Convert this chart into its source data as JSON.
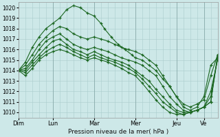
{
  "title": "",
  "xlabel": "Pression niveau de la mer( hPa )",
  "bg_color": "#cde8e8",
  "grid_color": "#aacccc",
  "line_color": "#1a6620",
  "ylim": [
    1009.5,
    1020.5
  ],
  "yticks": [
    1010,
    1011,
    1012,
    1013,
    1014,
    1015,
    1016,
    1017,
    1018,
    1019,
    1020
  ],
  "day_labels": [
    "Dim",
    "Lun",
    "Mar",
    "Mer",
    "Jeu",
    "Ve"
  ],
  "day_positions": [
    0,
    20,
    44,
    68,
    92,
    108
  ],
  "xlim": [
    0,
    116
  ],
  "series": [
    {
      "pts": [
        [
          0,
          1014.0
        ],
        [
          4,
          1014.8
        ],
        [
          8,
          1016.2
        ],
        [
          12,
          1017.2
        ],
        [
          16,
          1018.0
        ],
        [
          20,
          1018.5
        ],
        [
          24,
          1019.0
        ],
        [
          28,
          1019.8
        ],
        [
          32,
          1020.2
        ],
        [
          36,
          1020.0
        ],
        [
          40,
          1019.5
        ],
        [
          44,
          1019.2
        ],
        [
          48,
          1018.5
        ],
        [
          50,
          1018.0
        ],
        [
          54,
          1017.2
        ],
        [
          58,
          1016.5
        ],
        [
          62,
          1016.0
        ],
        [
          66,
          1015.5
        ],
        [
          68,
          1015.2
        ],
        [
          72,
          1015.0
        ],
        [
          76,
          1014.5
        ],
        [
          80,
          1014.0
        ],
        [
          84,
          1013.2
        ],
        [
          88,
          1012.5
        ],
        [
          92,
          1011.5
        ],
        [
          96,
          1010.5
        ],
        [
          100,
          1010.2
        ],
        [
          104,
          1010.5
        ],
        [
          108,
          1011.5
        ],
        [
          112,
          1014.5
        ],
        [
          116,
          1015.2
        ]
      ]
    },
    {
      "pts": [
        [
          0,
          1014.0
        ],
        [
          4,
          1014.5
        ],
        [
          8,
          1015.5
        ],
        [
          12,
          1016.5
        ],
        [
          16,
          1017.2
        ],
        [
          20,
          1017.8
        ],
        [
          24,
          1018.2
        ],
        [
          28,
          1018.0
        ],
        [
          32,
          1017.5
        ],
        [
          36,
          1017.2
        ],
        [
          40,
          1017.0
        ],
        [
          44,
          1017.2
        ],
        [
          48,
          1017.0
        ],
        [
          52,
          1016.8
        ],
        [
          56,
          1016.5
        ],
        [
          60,
          1016.2
        ],
        [
          64,
          1016.0
        ],
        [
          68,
          1015.8
        ],
        [
          72,
          1015.5
        ],
        [
          76,
          1015.0
        ],
        [
          80,
          1014.5
        ],
        [
          84,
          1013.5
        ],
        [
          88,
          1012.5
        ],
        [
          92,
          1011.5
        ],
        [
          96,
          1010.8
        ],
        [
          100,
          1010.5
        ],
        [
          104,
          1010.8
        ],
        [
          108,
          1011.2
        ],
        [
          112,
          1013.5
        ],
        [
          116,
          1015.5
        ]
      ]
    },
    {
      "pts": [
        [
          0,
          1014.0
        ],
        [
          4,
          1014.2
        ],
        [
          8,
          1015.0
        ],
        [
          12,
          1016.0
        ],
        [
          16,
          1016.8
        ],
        [
          20,
          1017.2
        ],
        [
          24,
          1017.5
        ],
        [
          28,
          1017.0
        ],
        [
          32,
          1016.5
        ],
        [
          36,
          1016.2
        ],
        [
          40,
          1016.0
        ],
        [
          44,
          1016.2
        ],
        [
          48,
          1016.0
        ],
        [
          52,
          1015.8
        ],
        [
          56,
          1015.5
        ],
        [
          60,
          1015.2
        ],
        [
          64,
          1015.0
        ],
        [
          68,
          1014.8
        ],
        [
          72,
          1014.5
        ],
        [
          76,
          1014.0
        ],
        [
          80,
          1013.5
        ],
        [
          84,
          1012.5
        ],
        [
          88,
          1011.5
        ],
        [
          92,
          1010.8
        ],
        [
          96,
          1010.2
        ],
        [
          100,
          1010.0
        ],
        [
          104,
          1010.2
        ],
        [
          108,
          1010.5
        ],
        [
          112,
          1012.0
        ],
        [
          116,
          1015.0
        ]
      ]
    },
    {
      "pts": [
        [
          0,
          1014.0
        ],
        [
          4,
          1014.0
        ],
        [
          8,
          1014.8
        ],
        [
          12,
          1015.5
        ],
        [
          16,
          1016.2
        ],
        [
          20,
          1016.8
        ],
        [
          24,
          1017.0
        ],
        [
          28,
          1016.5
        ],
        [
          32,
          1016.0
        ],
        [
          36,
          1015.8
        ],
        [
          40,
          1015.5
        ],
        [
          44,
          1015.8
        ],
        [
          48,
          1015.5
        ],
        [
          52,
          1015.2
        ],
        [
          56,
          1015.0
        ],
        [
          60,
          1014.8
        ],
        [
          64,
          1014.5
        ],
        [
          68,
          1014.0
        ],
        [
          72,
          1013.5
        ],
        [
          76,
          1013.0
        ],
        [
          80,
          1012.2
        ],
        [
          84,
          1011.5
        ],
        [
          88,
          1010.8
        ],
        [
          92,
          1010.2
        ],
        [
          96,
          1010.0
        ],
        [
          100,
          1010.0
        ],
        [
          104,
          1010.2
        ],
        [
          108,
          1010.5
        ],
        [
          112,
          1011.5
        ],
        [
          116,
          1015.2
        ]
      ]
    },
    {
      "pts": [
        [
          0,
          1014.0
        ],
        [
          4,
          1013.8
        ],
        [
          8,
          1014.5
        ],
        [
          12,
          1015.2
        ],
        [
          16,
          1015.8
        ],
        [
          20,
          1016.2
        ],
        [
          24,
          1016.5
        ],
        [
          28,
          1016.2
        ],
        [
          32,
          1015.8
        ],
        [
          36,
          1015.5
        ],
        [
          40,
          1015.2
        ],
        [
          44,
          1015.5
        ],
        [
          48,
          1015.2
        ],
        [
          52,
          1015.0
        ],
        [
          56,
          1014.8
        ],
        [
          60,
          1014.5
        ],
        [
          64,
          1014.2
        ],
        [
          68,
          1013.8
        ],
        [
          72,
          1013.2
        ],
        [
          76,
          1012.5
        ],
        [
          80,
          1011.8
        ],
        [
          84,
          1011.0
        ],
        [
          88,
          1010.5
        ],
        [
          92,
          1010.0
        ],
        [
          96,
          1009.8
        ],
        [
          100,
          1010.0
        ],
        [
          104,
          1010.2
        ],
        [
          108,
          1010.5
        ],
        [
          112,
          1011.0
        ],
        [
          116,
          1015.3
        ]
      ]
    },
    {
      "pts": [
        [
          0,
          1014.0
        ],
        [
          4,
          1013.5
        ],
        [
          8,
          1014.2
        ],
        [
          12,
          1015.0
        ],
        [
          16,
          1015.5
        ],
        [
          20,
          1015.8
        ],
        [
          24,
          1016.0
        ],
        [
          28,
          1015.8
        ],
        [
          32,
          1015.5
        ],
        [
          36,
          1015.2
        ],
        [
          40,
          1015.0
        ],
        [
          44,
          1015.2
        ],
        [
          48,
          1015.0
        ],
        [
          52,
          1014.8
        ],
        [
          56,
          1014.5
        ],
        [
          60,
          1014.2
        ],
        [
          64,
          1013.8
        ],
        [
          68,
          1013.5
        ],
        [
          72,
          1012.8
        ],
        [
          76,
          1012.0
        ],
        [
          80,
          1011.2
        ],
        [
          84,
          1010.5
        ],
        [
          88,
          1010.0
        ],
        [
          92,
          1009.8
        ],
        [
          96,
          1009.8
        ],
        [
          100,
          1010.0
        ],
        [
          104,
          1010.2
        ],
        [
          108,
          1010.5
        ],
        [
          112,
          1011.0
        ],
        [
          116,
          1015.5
        ]
      ]
    }
  ]
}
